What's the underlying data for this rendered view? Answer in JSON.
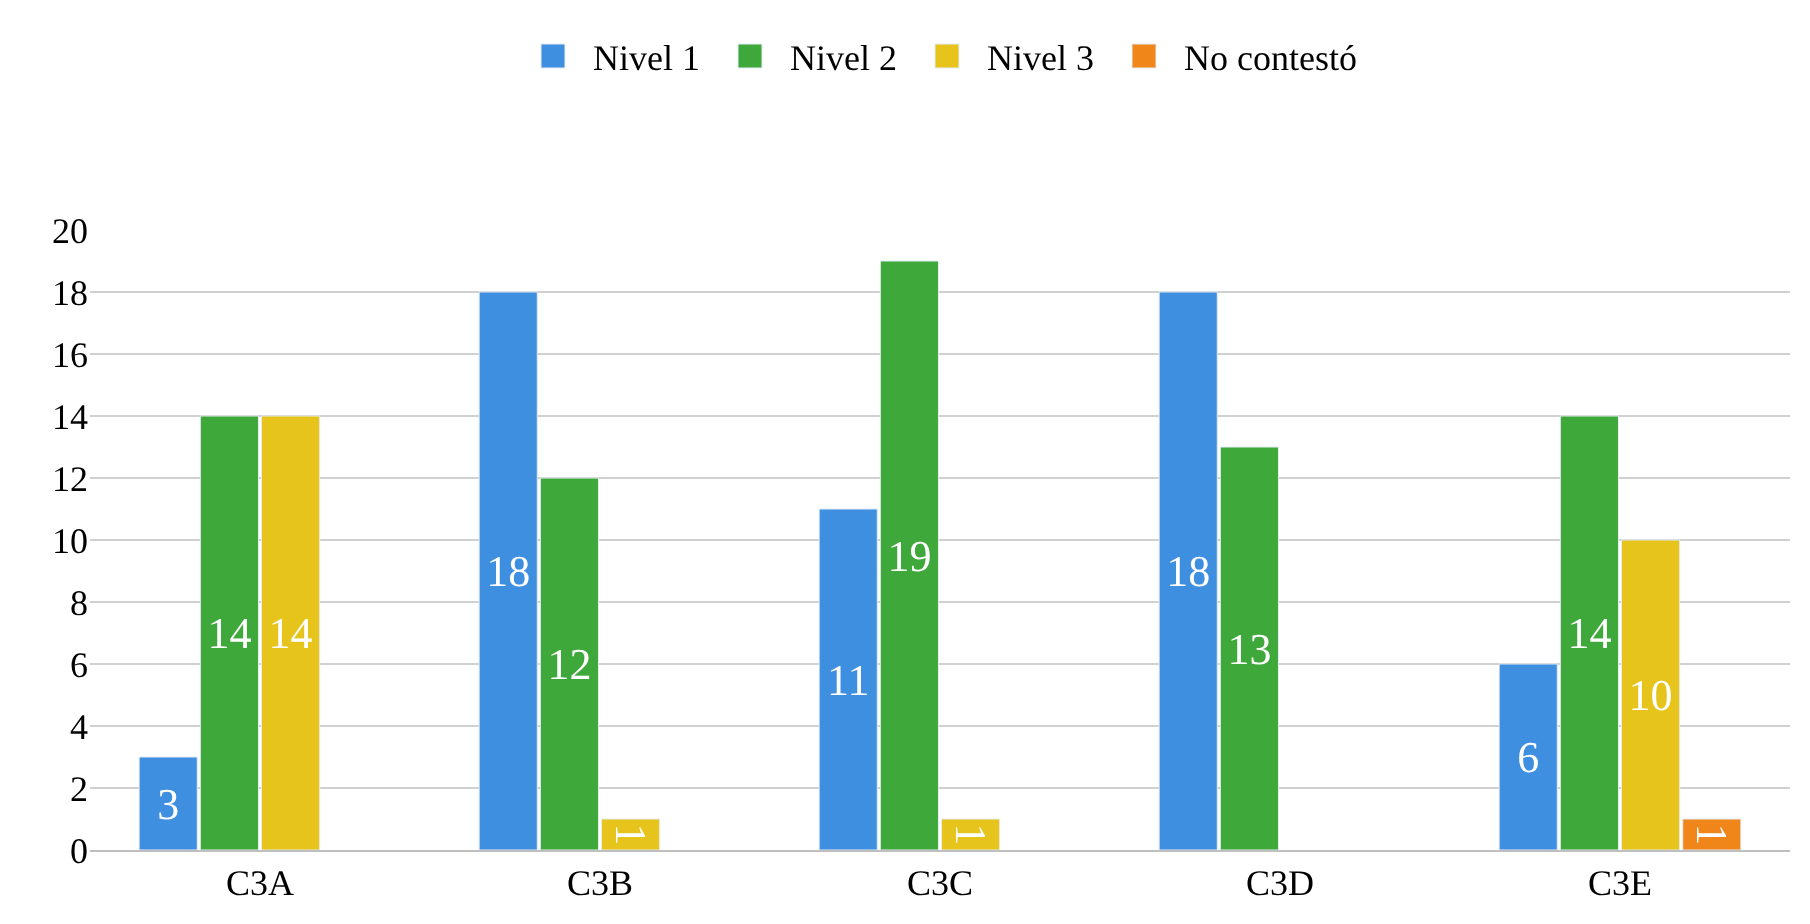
{
  "chart_data": {
    "type": "bar",
    "categories": [
      "C3A",
      "C3B",
      "C3C",
      "C3D",
      "C3E"
    ],
    "series": [
      {
        "name": "Nivel 1",
        "color": "#3f8fe0",
        "values": [
          3,
          18,
          11,
          18,
          6
        ]
      },
      {
        "name": "Nivel 2",
        "color": "#3fa83a",
        "values": [
          14,
          12,
          19,
          13,
          14
        ]
      },
      {
        "name": "Nivel 3",
        "color": "#e6c41c",
        "values": [
          14,
          1,
          1,
          null,
          10
        ]
      },
      {
        "name": "No contestó",
        "color": "#f0861a",
        "values": [
          null,
          null,
          null,
          null,
          1
        ]
      }
    ],
    "ylim": [
      0,
      20
    ],
    "yticks": [
      0,
      2,
      4,
      6,
      8,
      10,
      12,
      14,
      16,
      18,
      20
    ],
    "grid": "y",
    "legend": "top",
    "data_labels": true
  }
}
